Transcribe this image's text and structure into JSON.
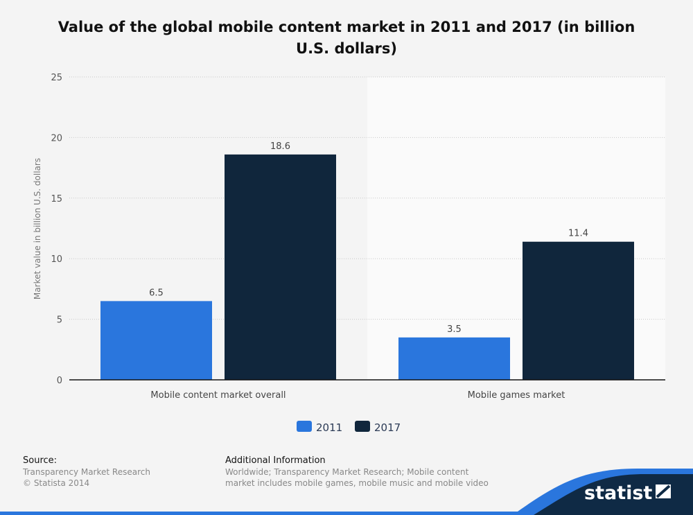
{
  "chart_data": {
    "type": "bar",
    "title": "Value of the global mobile content market in 2011 and 2017 (in billion U.S. dollars)",
    "ylabel": "Market value in billion U.S. dollars",
    "xlabel": "",
    "categories": [
      "Mobile content market overall",
      "Mobile games market"
    ],
    "series": [
      {
        "name": "2011",
        "values": [
          6.5,
          3.5
        ],
        "color": "#2a76dd"
      },
      {
        "name": "2017",
        "values": [
          18.6,
          11.4
        ],
        "color": "#10263c"
      }
    ],
    "ylim": [
      0,
      25
    ],
    "yticks": [
      0,
      5,
      10,
      15,
      20,
      25
    ],
    "grid": true,
    "legend": "bottom-center"
  },
  "footer": {
    "source_label": "Source:",
    "source": "Transparency Market Research",
    "copyright": "© Statista 2014",
    "info_label": "Additional Information",
    "info_line1": "Worldwide; Transparency Market Research; Mobile content",
    "info_line2": "market includes mobile games, mobile music and mobile video",
    "brand": "statista"
  }
}
